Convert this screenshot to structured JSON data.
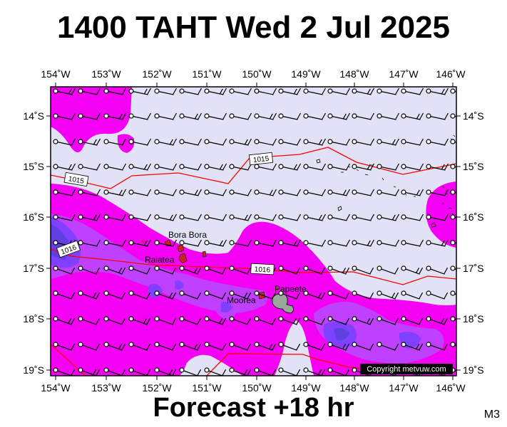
{
  "title": "1400 TAHT Wed 2 Jul 2025",
  "forecast_label": "Forecast +18 hr",
  "model_code": "M3",
  "copyright": "Copyright metvuw.com",
  "colors": {
    "background": "#e2e2f6",
    "rain_light": "#f400f4",
    "rain_medium": "#c040ff",
    "rain_heavy": "#8040ff",
    "rain_peak": "#6040e0",
    "isobar": "#ff0000",
    "land": "#cc2222",
    "tahiti": "#9aaa9a"
  },
  "axes": {
    "lon_labels": [
      "154˚W",
      "153˚W",
      "152˚W",
      "151˚W",
      "150˚W",
      "149˚W",
      "148˚W",
      "147˚W",
      "146˚W"
    ],
    "lat_labels": [
      "14˚S",
      "15˚S",
      "16˚S",
      "17˚S",
      "18˚S",
      "19˚S"
    ]
  },
  "places": [
    {
      "name": "Bora Bora"
    },
    {
      "name": "Raiatea"
    },
    {
      "name": "Moorea"
    },
    {
      "name": "Papeete"
    }
  ],
  "isobars": [
    {
      "label": "1015"
    },
    {
      "label": "1015"
    },
    {
      "label": "1016"
    },
    {
      "label": "1016"
    }
  ]
}
